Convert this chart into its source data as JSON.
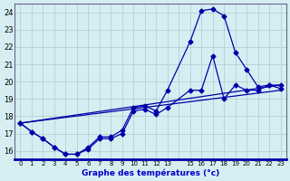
{
  "bg_color": "#d6eef2",
  "grid_color": "#aacccc",
  "line_color": "#0000aa",
  "xlabel": "Graphe des températures (°c)",
  "xlim": [
    -0.5,
    23.5
  ],
  "ylim": [
    15.5,
    24.5
  ],
  "yticks": [
    16,
    17,
    18,
    19,
    20,
    21,
    22,
    23,
    24
  ],
  "xticks": [
    0,
    1,
    2,
    3,
    4,
    5,
    6,
    7,
    8,
    9,
    10,
    11,
    12,
    13,
    14,
    15,
    16,
    17,
    18,
    19,
    20,
    21,
    22,
    23
  ],
  "xtick_labels": [
    "0",
    "1",
    "2",
    "3",
    "4",
    "5",
    "6",
    "7",
    "8",
    "9",
    "10",
    "11",
    "12",
    "13",
    "",
    "15",
    "16",
    "17",
    "18",
    "19",
    "20",
    "21",
    "22",
    "23"
  ],
  "curve1_x": [
    0,
    1,
    2,
    3,
    4,
    5,
    6,
    7,
    8,
    9,
    10,
    11,
    12,
    13,
    15,
    16,
    17,
    18,
    19,
    20,
    21,
    22,
    23
  ],
  "curve1_y": [
    17.6,
    17.1,
    16.7,
    16.2,
    15.8,
    15.8,
    16.1,
    16.7,
    16.7,
    17.0,
    18.3,
    18.4,
    18.1,
    18.5,
    19.5,
    19.5,
    21.5,
    19.0,
    19.8,
    19.5,
    19.5,
    19.8,
    19.8
  ],
  "curve2_x": [
    0,
    1,
    2,
    3,
    4,
    5,
    6,
    7,
    8,
    9,
    10,
    11,
    12,
    13,
    15,
    16,
    17,
    18,
    19,
    20,
    21,
    22,
    23
  ],
  "curve2_y": [
    17.6,
    17.1,
    16.7,
    16.2,
    15.8,
    15.8,
    16.2,
    16.8,
    16.8,
    17.2,
    18.5,
    18.6,
    18.3,
    19.5,
    22.3,
    24.1,
    24.2,
    23.8,
    21.7,
    20.7,
    19.7,
    19.8,
    19.6
  ],
  "curve3_x": [
    0,
    23
  ],
  "curve3_y": [
    17.6,
    19.5
  ],
  "curve4_x": [
    0,
    23
  ],
  "curve4_y": [
    17.6,
    19.8
  ]
}
